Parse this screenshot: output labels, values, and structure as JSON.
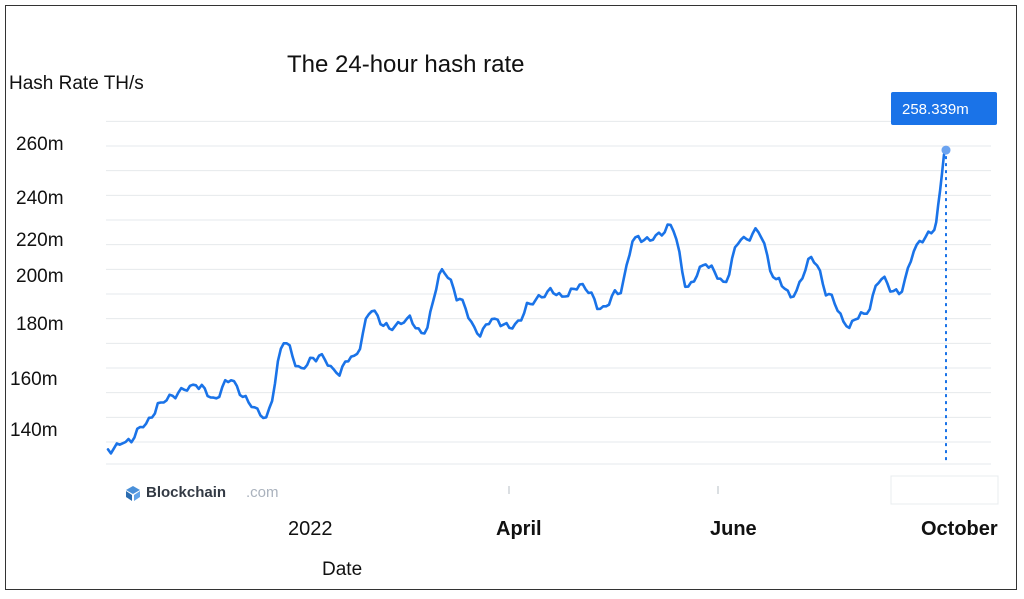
{
  "chart_data": {
    "type": "line",
    "title": "The 24-hour hash rate",
    "ylabel": "Hash Rate TH/s",
    "xlabel": "Date",
    "y_ticks": [
      "260m",
      "240m",
      "220m",
      "200m",
      "180m",
      "160m",
      "140m"
    ],
    "x_ticks": [
      "2022",
      "April",
      "June",
      "October"
    ],
    "grid": true,
    "line_color": "#1a73e8",
    "watermark": {
      "brand": "Blockchain",
      "suffix": ".com"
    },
    "tooltip": {
      "label": "258.339m",
      "value": 258.339,
      "color": "#1a73e8"
    },
    "series": [
      {
        "x": [
          "2021-12-26",
          "2022-01-01",
          "2022-01-07",
          "2022-01-13",
          "2022-01-19",
          "2022-01-25",
          "2022-01-31",
          "2022-02-06",
          "2022-02-12",
          "2022-02-18",
          "2022-02-24",
          "2022-03-02",
          "2022-03-08",
          "2022-03-14",
          "2022-03-20",
          "2022-03-26",
          "2022-04-01",
          "2022-04-07",
          "2022-04-13",
          "2022-04-19",
          "2022-04-25",
          "2022-05-01",
          "2022-05-07",
          "2022-05-13",
          "2022-05-19",
          "2022-05-25",
          "2022-05-31",
          "2022-06-06",
          "2022-06-12",
          "2022-06-18",
          "2022-06-24",
          "2022-06-30",
          "2022-07-06",
          "2022-07-12",
          "2022-07-18",
          "2022-07-24",
          "2022-07-30",
          "2022-08-05",
          "2022-08-11",
          "2022-08-17",
          "2022-08-23",
          "2022-08-29",
          "2022-09-04",
          "2022-09-10",
          "2022-09-16",
          "2022-09-22",
          "2022-09-28",
          "2022-10-04",
          "2022-10-08"
        ],
        "values": [
          137,
          140,
          146,
          156,
          160,
          163,
          158,
          165,
          156,
          150,
          180,
          170,
          175,
          168,
          175,
          193,
          186,
          190,
          184,
          210,
          198,
          184,
          190,
          186,
          196,
          201,
          199,
          204,
          194,
          200,
          223,
          222,
          228,
          203,
          212,
          205,
          222,
          225,
          206,
          199,
          215,
          200,
          187,
          192,
          206,
          200,
          220,
          226,
          258.339
        ]
      }
    ]
  }
}
